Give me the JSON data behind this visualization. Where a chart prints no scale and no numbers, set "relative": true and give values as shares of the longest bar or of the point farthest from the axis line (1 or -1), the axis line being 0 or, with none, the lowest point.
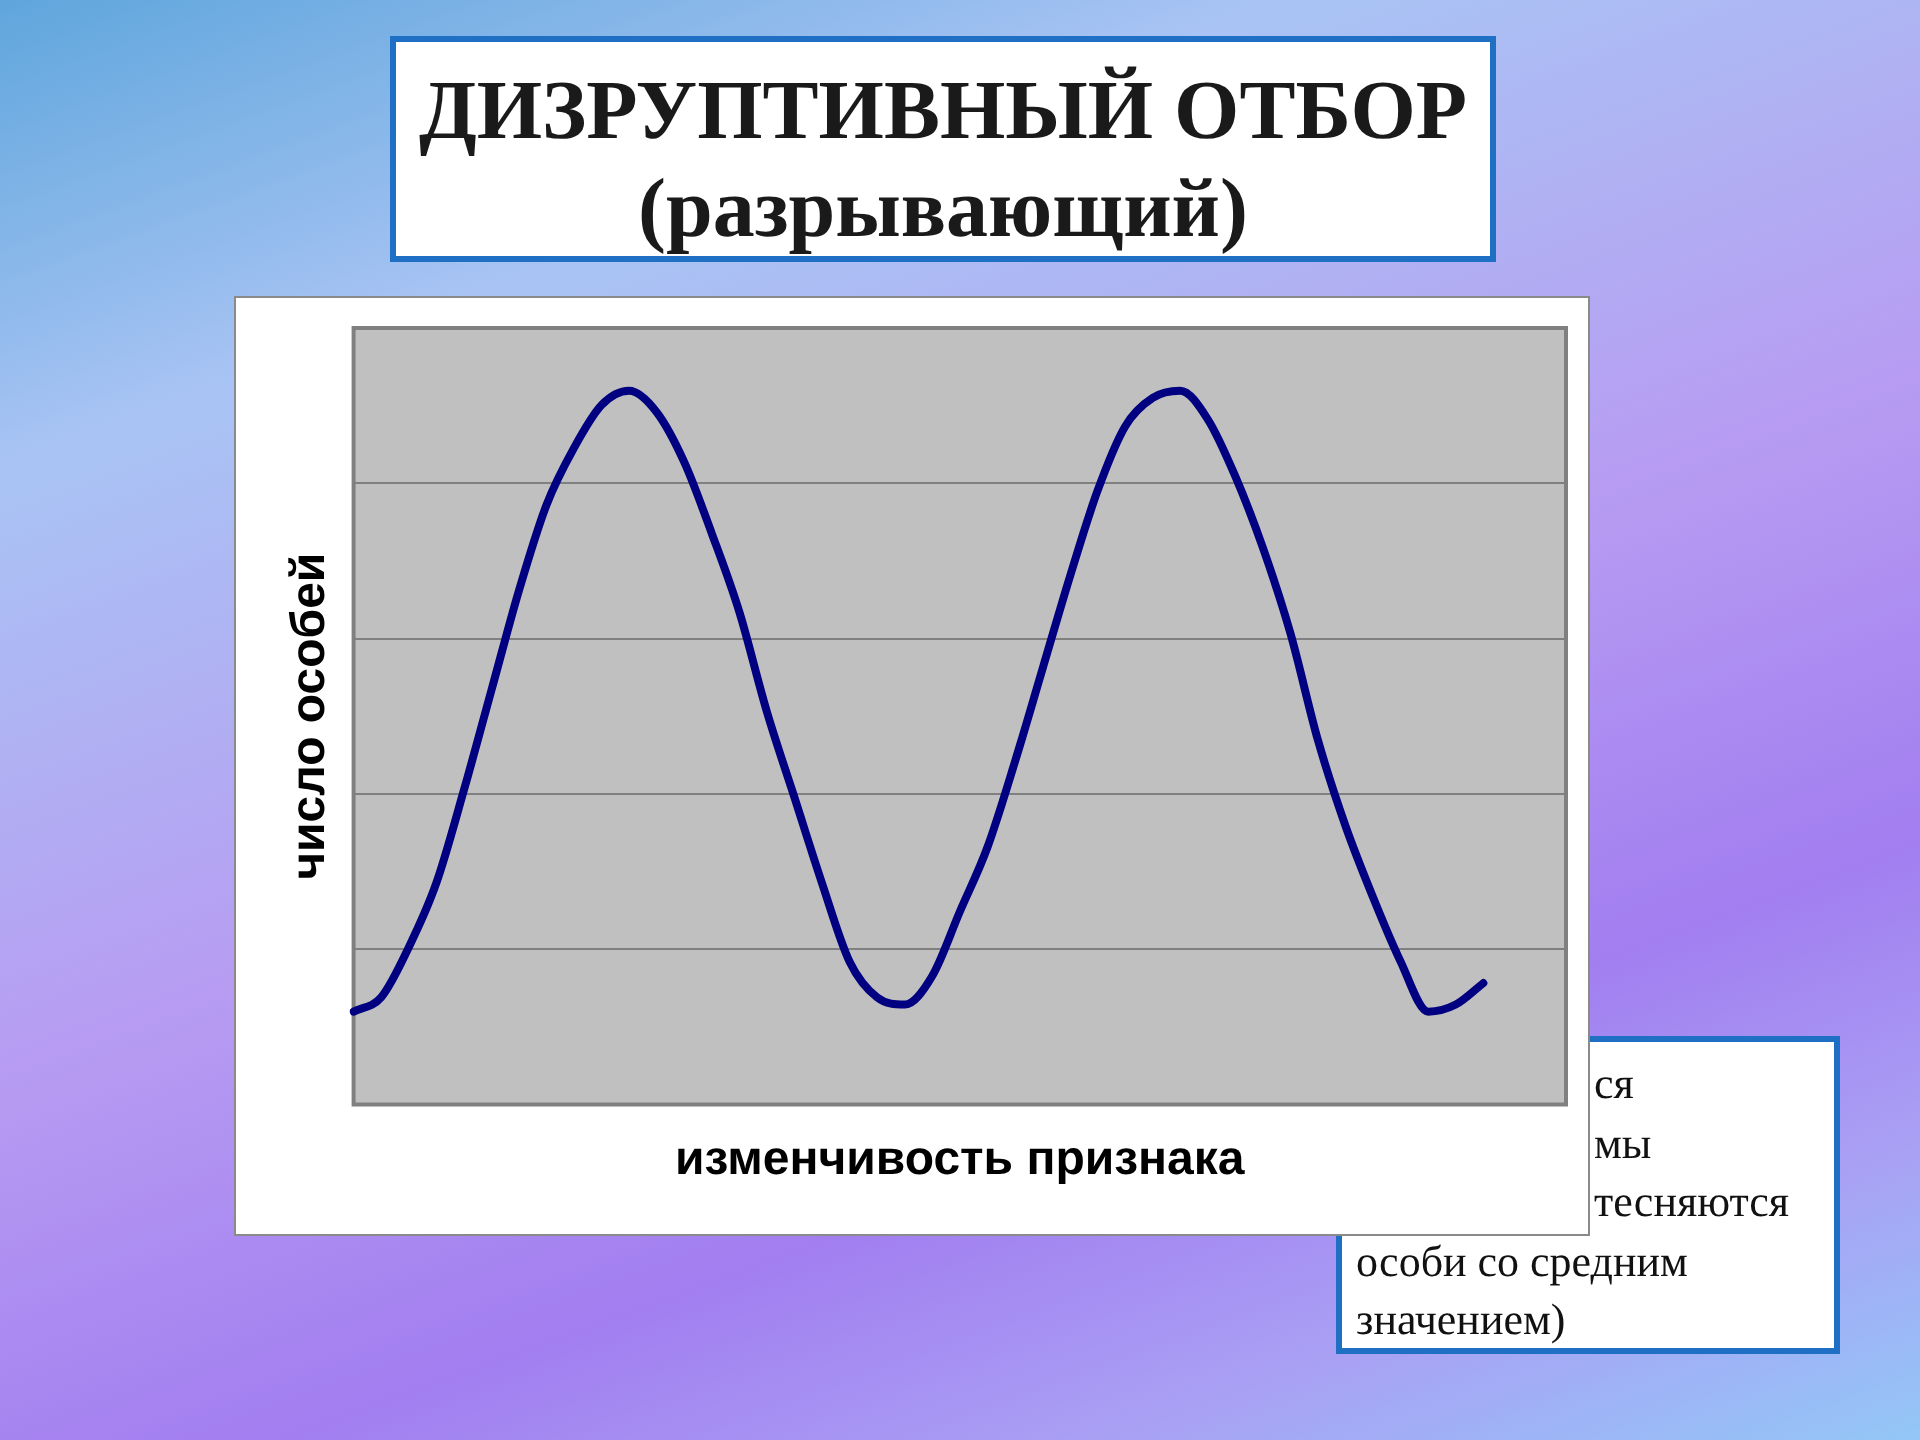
{
  "chart_data": {
    "type": "line",
    "title": "ДИЗРУПТИВНЫЙ ОТБОР",
    "subtitle": "(разрывающий)",
    "xlabel": "изменчивость признака",
    "ylabel": "число особей",
    "annotations": [
      "ся\nмы\nтесняются\nособи со средним\nзначением)"
    ],
    "categories": [
      null,
      null,
      null,
      null,
      null,
      null,
      null,
      null,
      null,
      null,
      null,
      null,
      null,
      null,
      null,
      null,
      null,
      null,
      null,
      null,
      null,
      null,
      null,
      null,
      null,
      null,
      null,
      null,
      null,
      null,
      null,
      null,
      null,
      null,
      null,
      null,
      null,
      null,
      null,
      null,
      null,
      null,
      null,
      null,
      null
    ],
    "values": [
      0.13,
      0.15,
      0.22,
      0.31,
      0.44,
      0.58,
      0.72,
      0.84,
      0.92,
      0.98,
      1,
      0.97,
      0.9,
      0.8,
      0.69,
      0.55,
      0.43,
      0.31,
      0.2,
      0.15,
      0.14,
      0.18,
      0.27,
      0.36,
      0.48,
      0.61,
      0.74,
      0.86,
      0.95,
      0.99,
      1,
      0.96,
      0.88,
      0.78,
      0.66,
      0.51,
      0.39,
      0.29,
      0.2,
      0.13,
      0.14,
      0.17,
      null,
      null,
      null
    ],
    "color": "#000080",
    "relative": true,
    "grid": "y",
    "marker": "none"
  }
}
